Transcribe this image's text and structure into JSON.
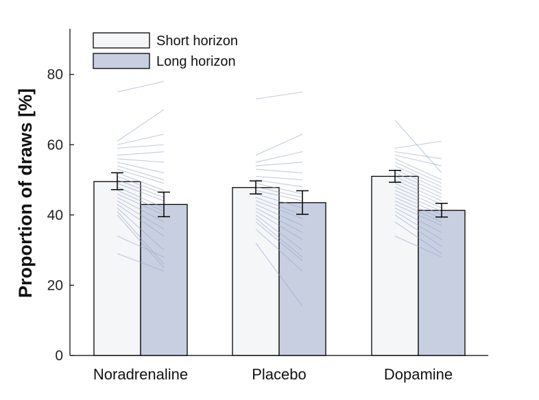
{
  "chart_data": {
    "type": "bar",
    "ylabel": "Proportion of draws [%]",
    "xlabel": "",
    "ylim": [
      0,
      93
    ],
    "yticks": [
      0,
      20,
      40,
      60,
      80
    ],
    "categories": [
      "Noradrenaline",
      "Placebo",
      "Dopamine"
    ],
    "legend_position": "top-left",
    "colors": {
      "short": "#f4f6f8",
      "long": "#c8cfe0",
      "subject_lines": "#9aa8cc"
    },
    "series": [
      {
        "name": "Short horizon",
        "values": [
          49.5,
          47.8,
          51.0
        ],
        "err_low": [
          47.2,
          46.0,
          49.3
        ],
        "err_high": [
          52.0,
          49.7,
          52.7
        ]
      },
      {
        "name": "Long horizon",
        "values": [
          43.0,
          43.5,
          41.3
        ],
        "err_low": [
          39.5,
          40.2,
          39.4
        ],
        "err_high": [
          46.5,
          46.9,
          43.3
        ]
      }
    ],
    "subjects": [
      [
        [
          75,
          78
        ],
        [
          61,
          70
        ],
        [
          60,
          63
        ],
        [
          59,
          60
        ],
        [
          57,
          58
        ],
        [
          56,
          55
        ],
        [
          55,
          52
        ],
        [
          54,
          50
        ],
        [
          53,
          49
        ],
        [
          52,
          47
        ],
        [
          51,
          46
        ],
        [
          50,
          45
        ],
        [
          49,
          44
        ],
        [
          48,
          42
        ],
        [
          47,
          41
        ],
        [
          46,
          40
        ],
        [
          45,
          38
        ],
        [
          44,
          36
        ],
        [
          43,
          34
        ],
        [
          42,
          30
        ],
        [
          41,
          26
        ],
        [
          40,
          25
        ],
        [
          34,
          28
        ],
        [
          29,
          24
        ]
      ],
      [
        [
          73,
          75
        ],
        [
          57,
          63
        ],
        [
          55,
          58
        ],
        [
          54,
          55
        ],
        [
          53,
          52
        ],
        [
          51,
          50
        ],
        [
          50,
          48
        ],
        [
          49,
          46
        ],
        [
          48,
          45
        ],
        [
          47,
          44
        ],
        [
          46,
          42
        ],
        [
          45,
          40
        ],
        [
          44,
          39
        ],
        [
          43,
          37
        ],
        [
          42,
          35
        ],
        [
          41,
          33
        ],
        [
          40,
          30
        ],
        [
          39,
          28
        ],
        [
          38,
          27
        ],
        [
          36,
          24
        ],
        [
          32,
          14
        ]
      ],
      [
        [
          67,
          52
        ],
        [
          59,
          61
        ],
        [
          58,
          56
        ],
        [
          57,
          54
        ],
        [
          56,
          50
        ],
        [
          55,
          49
        ],
        [
          54,
          48
        ],
        [
          53,
          47
        ],
        [
          52,
          46
        ],
        [
          51,
          45
        ],
        [
          50,
          44
        ],
        [
          49,
          43
        ],
        [
          48,
          42
        ],
        [
          47,
          41
        ],
        [
          46,
          40
        ],
        [
          45,
          39
        ],
        [
          44,
          38
        ],
        [
          43,
          37
        ],
        [
          42,
          35
        ],
        [
          41,
          33
        ],
        [
          40,
          31
        ],
        [
          38,
          29
        ],
        [
          34,
          28
        ]
      ]
    ]
  }
}
